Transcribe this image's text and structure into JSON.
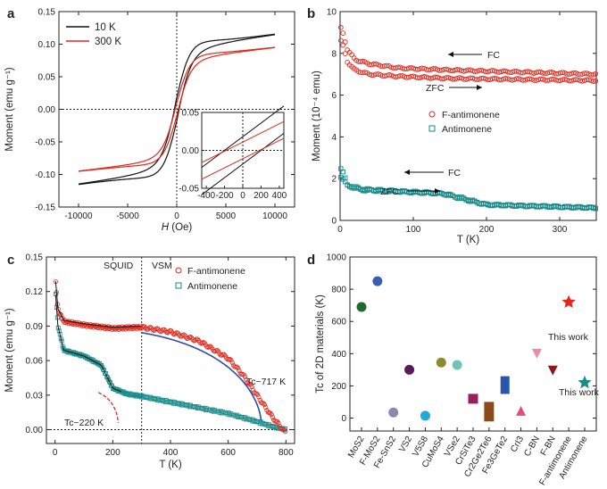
{
  "panels": {
    "a": {
      "letter": "a",
      "ylabel": "Moment (emu g⁻¹)",
      "xlabel_italic": "H",
      "xlabel_rest": " (Oe)",
      "legend": [
        "10 K",
        "300 K"
      ]
    },
    "b": {
      "letter": "b",
      "ylabel": "Moment (10⁻⁴ emu)",
      "xlabel": "T (K)",
      "legend": [
        "F-antimonene",
        "Antimonene"
      ],
      "annotations": {
        "fc_top": "FC",
        "zfc_top": "ZFC",
        "fc_bottom": "FC",
        "zfc_bottom": "ZFC"
      }
    },
    "c": {
      "letter": "c",
      "ylabel": "Moment (emu g⁻¹)",
      "xlabel": "T (K)",
      "legend": [
        "F-antimonene",
        "Antimonene"
      ],
      "region_labels": [
        "SQUID",
        "VSM"
      ],
      "tc_labels": [
        "Tc~717 K",
        "Tc~220 K"
      ]
    },
    "d": {
      "letter": "d",
      "ylabel": "Tc of 2D materials (K)",
      "annotations": [
        "This work",
        "This work"
      ]
    }
  },
  "colors": {
    "black": "#111111",
    "red": "#e0281c",
    "teal": "#1a8a8a",
    "blue": "#2b4ea8"
  },
  "chart_data": [
    {
      "panel": "a",
      "type": "line",
      "xlabel": "H (Oe)",
      "ylabel": "Moment (emu g⁻¹)",
      "xlim": [
        -12000,
        12000
      ],
      "ylim": [
        -0.15,
        0.15
      ],
      "xticks": [
        -10000,
        -5000,
        0,
        5000,
        10000
      ],
      "yticks": [
        -0.15,
        -0.1,
        -0.05,
        0.0,
        0.05,
        0.1,
        0.15
      ],
      "series": [
        {
          "name": "10 K",
          "color": "#111111",
          "Ms": 0.115,
          "Mr": 0.018,
          "Hc": 120,
          "x": [
            -10000,
            -5000,
            -2000,
            -1000,
            0,
            1000,
            2000,
            5000,
            10000
          ],
          "y": [
            -0.112,
            -0.103,
            -0.085,
            -0.068,
            0.0,
            0.068,
            0.085,
            0.103,
            0.115
          ]
        },
        {
          "name": "300 K",
          "color": "#e0281c",
          "Ms": 0.095,
          "Mr": 0.01,
          "Hc": 80,
          "x": [
            -10000,
            -5000,
            -2000,
            -1000,
            0,
            1000,
            2000,
            5000,
            10000
          ],
          "y": [
            -0.095,
            -0.088,
            -0.072,
            -0.058,
            0.0,
            0.058,
            0.072,
            0.088,
            0.095
          ]
        }
      ],
      "inset": {
        "xlim": [
          -450,
          450
        ],
        "ylim": [
          -0.05,
          0.05
        ],
        "xticks": [
          -400,
          -200,
          0,
          200,
          400
        ],
        "yticks": [
          -0.05,
          0.0,
          0.05
        ]
      }
    },
    {
      "panel": "b",
      "type": "scatter",
      "xlabel": "T (K)",
      "ylabel": "Moment (10⁻⁴ emu)",
      "xlim": [
        0,
        350
      ],
      "ylim": [
        0,
        10
      ],
      "xticks": [
        0,
        100,
        200,
        300
      ],
      "yticks": [
        0,
        2,
        4,
        6,
        8,
        10
      ],
      "series": [
        {
          "name": "F-antimonene FC",
          "color": "#e0281c",
          "x": [
            2,
            10,
            20,
            40,
            80,
            150,
            250,
            350
          ],
          "y": [
            9.2,
            8.2,
            7.7,
            7.5,
            7.3,
            7.2,
            7.1,
            7.0
          ]
        },
        {
          "name": "F-antimonene ZFC",
          "color": "#e0281c",
          "x": [
            2,
            10,
            20,
            40,
            80,
            150,
            250,
            350
          ],
          "y": [
            8.6,
            7.6,
            7.2,
            7.0,
            6.9,
            6.8,
            6.75,
            6.7
          ]
        },
        {
          "name": "Antimonene FC",
          "color": "#1a8a8a",
          "x": [
            2,
            10,
            30,
            80,
            140,
            170,
            200,
            250,
            350
          ],
          "y": [
            2.5,
            1.7,
            1.5,
            1.4,
            1.3,
            1.05,
            0.75,
            0.7,
            0.6
          ]
        },
        {
          "name": "Antimonene ZFC",
          "color": "#1a8a8a",
          "x": [
            2,
            10,
            30,
            80,
            140,
            170,
            200,
            250,
            350
          ],
          "y": [
            2.1,
            1.65,
            1.45,
            1.38,
            1.28,
            1.0,
            0.75,
            0.7,
            0.6
          ]
        }
      ]
    },
    {
      "panel": "c",
      "type": "scatter",
      "xlabel": "T (K)",
      "ylabel": "Moment (emu g⁻¹)",
      "xlim": [
        -30,
        830
      ],
      "ylim": [
        -0.012,
        0.15
      ],
      "xticks": [
        0,
        200,
        400,
        600,
        800
      ],
      "yticks": [
        0.0,
        0.03,
        0.06,
        0.09,
        0.12,
        0.15
      ],
      "series": [
        {
          "name": "F-antimonene",
          "color": "#e0281c",
          "x": [
            2,
            10,
            30,
            100,
            200,
            300,
            400,
            500,
            600,
            650,
            700,
            750,
            800
          ],
          "y": [
            0.128,
            0.104,
            0.094,
            0.091,
            0.088,
            0.089,
            0.085,
            0.077,
            0.062,
            0.048,
            0.03,
            0.012,
            -0.003
          ]
        },
        {
          "name": "Antimonene",
          "color": "#1a8a8a",
          "x": [
            2,
            10,
            30,
            100,
            160,
            200,
            250,
            300,
            400,
            500,
            600,
            700,
            750,
            800
          ],
          "y": [
            0.117,
            0.09,
            0.069,
            0.064,
            0.056,
            0.036,
            0.031,
            0.029,
            0.024,
            0.019,
            0.014,
            0.007,
            0.003,
            0.0
          ]
        }
      ],
      "fits": [
        {
          "name": "Tc~717 K",
          "color": "#2b4ea8",
          "Tc": 717
        },
        {
          "name": "Tc~220 K",
          "color": "#e0281c",
          "Tc": 220
        }
      ],
      "divider_x": 300
    },
    {
      "panel": "d",
      "type": "scatter",
      "ylabel": "Tc of 2D materials (K)",
      "ylim": [
        -80,
        1000
      ],
      "yticks": [
        0,
        200,
        400,
        600,
        800,
        1000
      ],
      "categories": [
        "MoS2",
        "F-MoS2",
        "Fe-SnS2",
        "VS2",
        "V5S8",
        "CuMoS4",
        "VSe2",
        "CrSiTe3",
        "Cr2Ge2Te6",
        "Fe3GeTe2",
        "CrI3",
        "C-BN",
        "F-BN",
        "F-antimonene",
        "Antimonene"
      ],
      "points": [
        {
          "category": "MoS2",
          "value": 690,
          "marker": "circle",
          "color": "#1e6b2a"
        },
        {
          "category": "F-MoS2",
          "value": 850,
          "marker": "circle",
          "color": "#3a5fb0"
        },
        {
          "category": "Fe-SnS2",
          "value": 35,
          "marker": "circle",
          "color": "#8e87b5"
        },
        {
          "category": "VS2",
          "value": 300,
          "marker": "circle",
          "color": "#5a1a5a"
        },
        {
          "category": "V5S8",
          "value": 15,
          "marker": "circle",
          "color": "#25a8d8"
        },
        {
          "category": "CuMoS4",
          "value": 345,
          "marker": "circle",
          "color": "#8c8a2a"
        },
        {
          "category": "VSe2",
          "value": 330,
          "marker": "circle",
          "color": "#6fc4b8"
        },
        {
          "category": "CrSiTe3",
          "value": 120,
          "marker": "square",
          "color": "#9a1e5c"
        },
        {
          "category": "Cr2Ge2Te6",
          "value": 70,
          "marker": "square",
          "color": "#8a4a1a"
        },
        {
          "category": "Cr2Ge2Te6",
          "value": 10,
          "marker": "square",
          "color": "#8a4a1a"
        },
        {
          "category": "Fe3GeTe2",
          "value": 205,
          "marker": "bar",
          "color": "#2a55a8",
          "low": 150,
          "high": 260
        },
        {
          "category": "CrI3",
          "value": 45,
          "marker": "triangle",
          "color": "#e05070"
        },
        {
          "category": "C-BN",
          "value": 400,
          "marker": "triangle-down",
          "color": "#f08aa8"
        },
        {
          "category": "F-BN",
          "value": 295,
          "marker": "triangle-down",
          "color": "#8a1a1a"
        },
        {
          "category": "F-antimonene",
          "value": 720,
          "marker": "star",
          "color": "#e0281c"
        },
        {
          "category": "Antimonene",
          "value": 220,
          "marker": "star",
          "color": "#1a8a8a"
        }
      ]
    }
  ]
}
